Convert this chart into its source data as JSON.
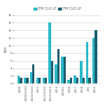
{
  "categories": [
    "2008",
    "2009/2Q09",
    "2010/2Q10",
    "2011",
    "2012/2Q12",
    "2H13/2013",
    "2014",
    "2014/1",
    "2H14",
    "2017",
    "2018",
    "2H1",
    "2023"
  ],
  "series1_label": "LTM CLO LF",
  "series2_label": "LTM CLO LP",
  "series1_color": "#2ab8c8",
  "series2_color": "#1b5e6e",
  "series1_values": [
    2,
    1.5,
    3,
    1.5,
    1.5,
    16,
    5,
    7,
    1,
    2,
    6,
    11,
    12
  ],
  "series2_values": [
    1.5,
    1.5,
    5,
    1.5,
    1.5,
    6,
    9,
    7,
    1.5,
    1.5,
    1.5,
    1.5,
    14
  ],
  "ylabel": "$bn",
  "ylim": [
    0,
    18
  ],
  "background_color": "#ffffff",
  "text_color": "#555555",
  "grid_color": "#cccccc",
  "bar_width": 0.38,
  "tick_fontsize": 3.0,
  "legend_fontsize": 3.5,
  "ylabel_fontsize": 3.5
}
